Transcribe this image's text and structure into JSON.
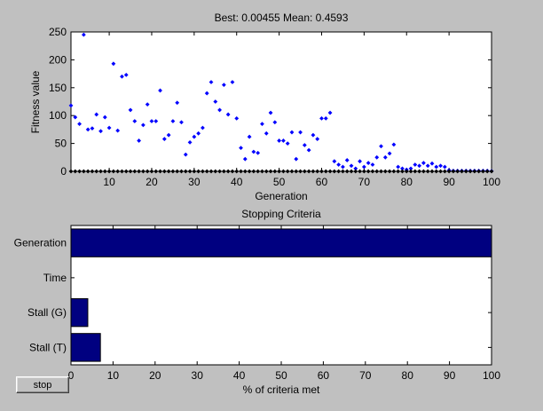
{
  "controls": {
    "stop_label": "stop"
  },
  "chart_data": [
    {
      "type": "scatter",
      "title": "Best: 0.00455 Mean: 0.4593",
      "xlabel": "Generation",
      "ylabel": "Fitness value",
      "xlim": [
        1,
        100
      ],
      "ylim": [
        0,
        250
      ],
      "xticks": [
        10,
        20,
        30,
        40,
        50,
        60,
        70,
        80,
        90,
        100
      ],
      "yticks": [
        0,
        50,
        100,
        150,
        200,
        250
      ],
      "grid": false,
      "colors": {
        "best": "#000000",
        "mean": "#0000ff"
      },
      "series": [
        {
          "marker": "diamond",
          "color": "#000000",
          "x": [
            1,
            2,
            3,
            4,
            5,
            6,
            7,
            8,
            9,
            10,
            11,
            12,
            13,
            14,
            15,
            16,
            17,
            18,
            19,
            20,
            21,
            22,
            23,
            24,
            25,
            26,
            27,
            28,
            29,
            30,
            31,
            32,
            33,
            34,
            35,
            36,
            37,
            38,
            39,
            40,
            41,
            42,
            43,
            44,
            45,
            46,
            47,
            48,
            49,
            50,
            51,
            52,
            53,
            54,
            55,
            56,
            57,
            58,
            59,
            60,
            61,
            62,
            63,
            64,
            65,
            66,
            67,
            68,
            69,
            70,
            71,
            72,
            73,
            74,
            75,
            76,
            77,
            78,
            79,
            80,
            81,
            82,
            83,
            84,
            85,
            86,
            87,
            88,
            89,
            90,
            91,
            92,
            93,
            94,
            95,
            96,
            97,
            98,
            99,
            100
          ],
          "y": [
            0,
            0,
            0,
            0,
            0,
            0,
            0,
            0,
            0,
            0,
            0,
            0,
            0,
            0,
            0,
            0,
            0,
            0,
            0,
            0,
            0,
            0,
            0,
            0,
            0,
            0,
            0,
            0,
            0,
            0,
            0,
            0,
            0,
            0,
            0,
            0,
            0,
            0,
            0,
            0,
            0,
            0,
            0,
            0,
            0,
            0,
            0,
            0,
            0,
            0,
            0,
            0,
            0,
            0,
            0,
            0,
            0,
            0,
            0,
            0,
            0,
            0,
            0,
            0,
            0,
            0,
            0,
            0,
            0,
            0,
            0,
            0,
            0,
            0,
            0,
            0,
            0,
            0,
            0,
            0,
            0,
            0,
            0,
            0,
            0,
            0,
            0,
            0,
            0,
            0,
            0,
            0,
            0,
            0,
            0,
            0,
            0,
            0,
            0,
            0.00455
          ]
        },
        {
          "marker": "diamond",
          "color": "#0000ff",
          "x": [
            1,
            2,
            3,
            4,
            5,
            6,
            7,
            8,
            9,
            10,
            11,
            12,
            13,
            14,
            15,
            16,
            17,
            18,
            19,
            20,
            21,
            22,
            23,
            24,
            25,
            26,
            27,
            28,
            29,
            30,
            31,
            32,
            33,
            34,
            35,
            36,
            37,
            38,
            39,
            40,
            41,
            42,
            43,
            44,
            45,
            46,
            47,
            48,
            49,
            50,
            51,
            52,
            53,
            54,
            55,
            56,
            57,
            58,
            59,
            60,
            61,
            62,
            63,
            64,
            65,
            66,
            67,
            68,
            69,
            70,
            71,
            72,
            73,
            74,
            75,
            76,
            77,
            78,
            79,
            80,
            81,
            82,
            83,
            84,
            85,
            86,
            87,
            88,
            89,
            90,
            91,
            92,
            93,
            94,
            95,
            96,
            97,
            98,
            99,
            100
          ],
          "y": [
            118,
            97,
            85,
            245,
            75,
            77,
            102,
            72,
            97,
            78,
            193,
            73,
            170,
            173,
            110,
            90,
            55,
            83,
            120,
            90,
            90,
            145,
            58,
            65,
            90,
            123,
            88,
            30,
            52,
            62,
            68,
            78,
            140,
            160,
            125,
            110,
            155,
            102,
            160,
            95,
            42,
            22,
            62,
            35,
            33,
            85,
            68,
            105,
            88,
            55,
            55,
            50,
            70,
            22,
            70,
            47,
            38,
            65,
            58,
            95,
            95,
            105,
            18,
            12,
            8,
            20,
            10,
            5,
            18,
            8,
            15,
            12,
            25,
            45,
            25,
            32,
            48,
            8,
            5,
            3,
            5,
            12,
            10,
            15,
            10,
            14,
            8,
            10,
            8,
            2,
            1,
            1,
            1,
            1,
            1,
            1,
            1,
            1,
            1,
            0.46
          ]
        }
      ]
    },
    {
      "type": "bar",
      "orientation": "horizontal",
      "title": "Stopping Criteria",
      "xlabel": "% of criteria met",
      "ylabel": "",
      "xlim": [
        0,
        100
      ],
      "xticks": [
        0,
        10,
        20,
        30,
        40,
        50,
        60,
        70,
        80,
        90,
        100
      ],
      "grid": false,
      "bar_color": "#000080",
      "categories": [
        "Generation",
        "Time",
        "Stall (G)",
        "Stall (T)"
      ],
      "values": [
        100,
        0,
        4,
        7
      ]
    }
  ]
}
